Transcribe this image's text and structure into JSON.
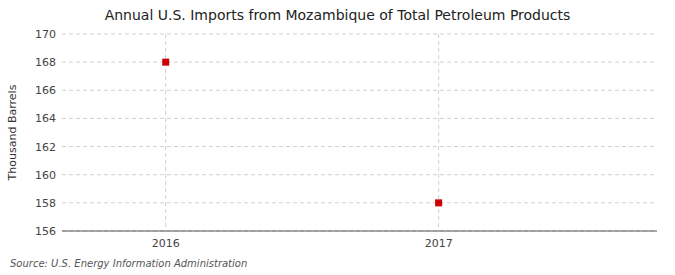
{
  "chart_data": {
    "type": "scatter",
    "title": "Annual U.S. Imports from Mozambique of Total Petroleum Products",
    "ylabel": "Thousand Barrels",
    "source": "Source: U.S. Energy Information Administration",
    "x": [
      2016,
      2017
    ],
    "values": [
      168,
      158
    ],
    "color": "#cc0000",
    "marker": "square",
    "xlim": [
      2015.62,
      2017.8
    ],
    "xticks": [
      2016,
      2017
    ],
    "ylim": [
      156,
      170
    ],
    "yticks": [
      156,
      158,
      160,
      162,
      164,
      166,
      168,
      170
    ],
    "grid": true
  }
}
